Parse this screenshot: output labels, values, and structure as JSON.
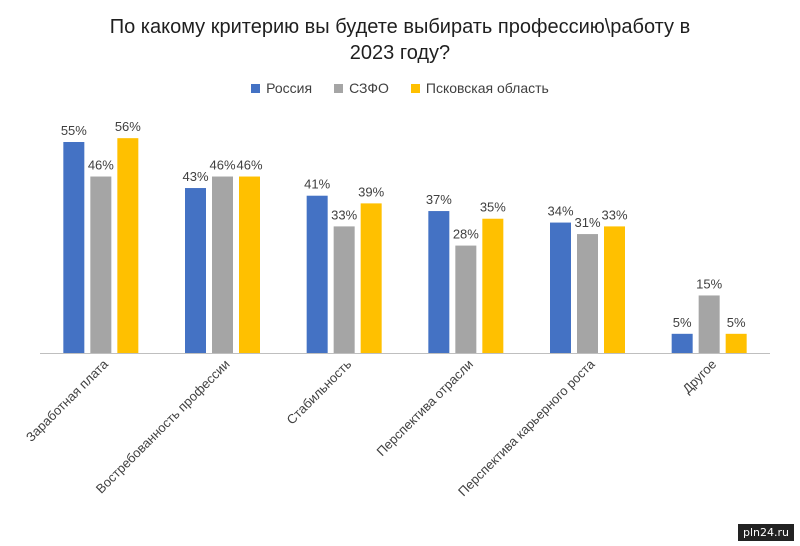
{
  "chart_data": {
    "type": "bar",
    "title_lines": [
      "По какому критерию вы будете выбирать профессию\\работу в",
      "2023 году?"
    ],
    "categories": [
      "Заработная плата",
      "Востребованность профессии",
      "Стабильность",
      "Перспектива отрасли",
      "Перспектива карьерного роста",
      "Другое"
    ],
    "series": [
      {
        "name": "Россия",
        "color": "#4472C4",
        "values": [
          55,
          43,
          41,
          37,
          34,
          5
        ]
      },
      {
        "name": "СЗФО",
        "color": "#A5A5A5",
        "values": [
          46,
          46,
          33,
          28,
          31,
          15
        ]
      },
      {
        "name": "Псковская область",
        "color": "#FFC000",
        "values": [
          56,
          46,
          39,
          35,
          33,
          5
        ]
      }
    ],
    "value_suffix": "%",
    "ylim": [
      0,
      60
    ],
    "grid": false,
    "legend_position": "top-center"
  },
  "watermark": "pln24.ru"
}
